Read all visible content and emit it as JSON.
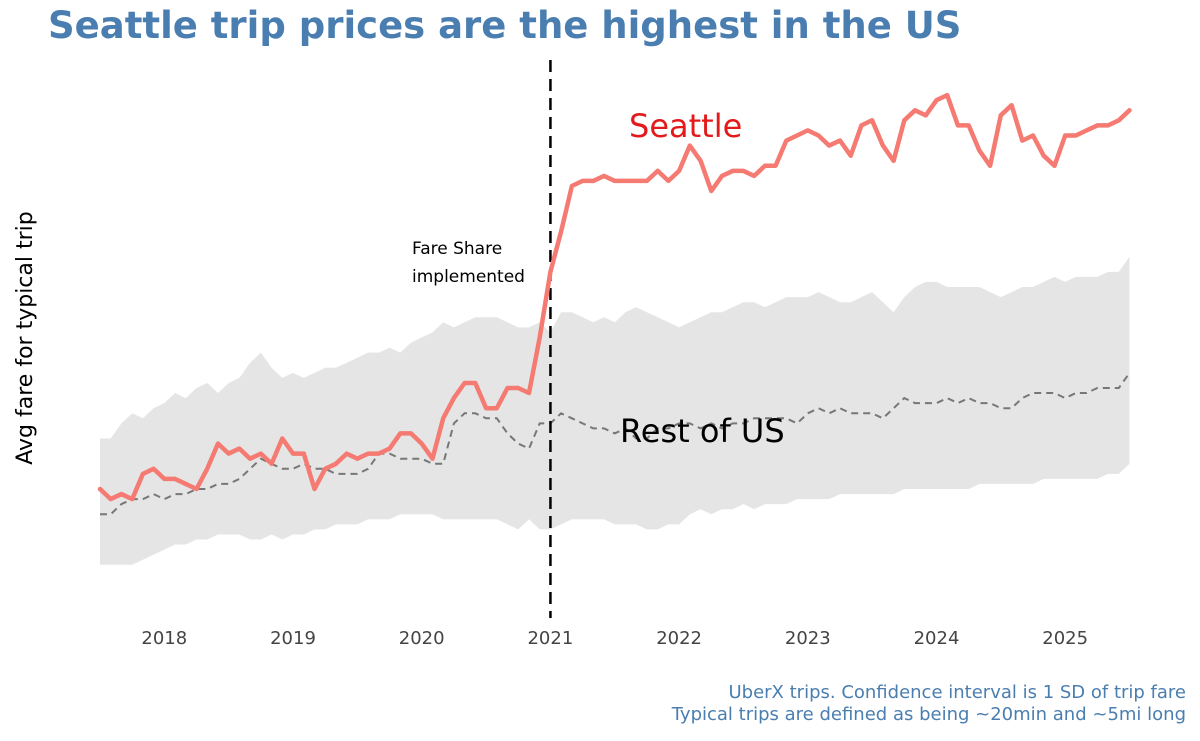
{
  "chart_data": {
    "type": "line",
    "title": "Seattle trip prices are the highest in the US",
    "ylabel": "Avg fare for typical trip",
    "xlabel": "",
    "x_start": 2017.5,
    "x_step": 0.08333,
    "xlim": [
      2017.5,
      2025.55
    ],
    "ylim": [
      0,
      100
    ],
    "x_ticks": [
      2018,
      2019,
      2020,
      2021,
      2022,
      2023,
      2024,
      2025
    ],
    "x_tick_labels": [
      "2018",
      "2019",
      "2020",
      "2021",
      "2022",
      "2023",
      "2024",
      "2025"
    ],
    "colors": {
      "seattle": "#f47a72",
      "seattle_label": "#e31a1c",
      "band": "#e5e5e5",
      "rest": "#777777",
      "title": "#4a7eb0"
    },
    "series": [
      {
        "name": "Seattle",
        "style": "solid",
        "values": [
          20,
          18,
          19,
          18,
          23,
          24,
          22,
          22,
          21,
          20,
          24,
          29,
          27,
          28,
          26,
          27,
          25,
          30,
          27,
          27,
          20,
          24,
          25,
          27,
          26,
          27,
          27,
          28,
          31,
          31,
          29,
          26,
          34,
          38,
          41,
          41,
          36,
          36,
          40,
          40,
          39,
          50,
          63,
          71,
          80,
          81,
          81,
          82,
          81,
          81,
          81,
          81,
          83,
          81,
          83,
          88,
          85,
          79,
          82,
          83,
          83,
          82,
          84,
          84,
          89,
          90,
          91,
          90,
          88,
          89,
          86,
          92,
          93,
          88,
          85,
          93,
          95,
          94,
          97,
          98,
          92,
          92,
          87,
          84,
          94,
          96,
          89,
          90,
          86,
          84,
          90,
          90,
          91,
          92,
          92,
          93,
          95
        ]
      },
      {
        "name": "Rest of US",
        "style": "dashed",
        "values": [
          15,
          15,
          17,
          18,
          18,
          19,
          18,
          19,
          19,
          20,
          20,
          21,
          21,
          22,
          24,
          26,
          25,
          24,
          24,
          25,
          24,
          24,
          23,
          23,
          23,
          24,
          27,
          27,
          26,
          26,
          26,
          25,
          25,
          33,
          35,
          35,
          34,
          34,
          31,
          29,
          28,
          33,
          33,
          35,
          34,
          33,
          32,
          32,
          31,
          32,
          30,
          30,
          32,
          32,
          33,
          33,
          32,
          33,
          32,
          33,
          33,
          34,
          34,
          34,
          34,
          33,
          35,
          36,
          35,
          36,
          35,
          35,
          35,
          34,
          36,
          38,
          37,
          37,
          37,
          38,
          37,
          38,
          37,
          37,
          36,
          36,
          38,
          39,
          39,
          39,
          38,
          39,
          39,
          40,
          40,
          40,
          43
        ]
      }
    ],
    "band": {
      "name": "Confidence interval (1 SD)",
      "upper": [
        30,
        30,
        33,
        35,
        34,
        36,
        37,
        39,
        38,
        40,
        41,
        39,
        41,
        42,
        45,
        47,
        44,
        42,
        43,
        42,
        43,
        44,
        44,
        45,
        46,
        47,
        47,
        48,
        47,
        49,
        50,
        51,
        53,
        52,
        53,
        54,
        54,
        54,
        53,
        52,
        52,
        53,
        51,
        55,
        55,
        54,
        53,
        54,
        53,
        55,
        56,
        55,
        54,
        53,
        52,
        53,
        54,
        55,
        55,
        56,
        57,
        57,
        56,
        57,
        58,
        58,
        58,
        59,
        58,
        57,
        57,
        58,
        59,
        57,
        55,
        58,
        60,
        61,
        61,
        60,
        60,
        60,
        60,
        59,
        58,
        59,
        60,
        60,
        61,
        62,
        61,
        62,
        62,
        62,
        63,
        63,
        66
      ],
      "lower": [
        5,
        5,
        5,
        5,
        6,
        7,
        8,
        9,
        9,
        10,
        10,
        11,
        11,
        11,
        10,
        10,
        11,
        10,
        11,
        11,
        12,
        12,
        13,
        13,
        13,
        14,
        14,
        14,
        15,
        15,
        15,
        15,
        14,
        14,
        14,
        14,
        14,
        14,
        13,
        12,
        14,
        12,
        12,
        13,
        14,
        14,
        14,
        14,
        13,
        13,
        13,
        12,
        12,
        13,
        13,
        15,
        16,
        15,
        16,
        16,
        17,
        16,
        17,
        17,
        17,
        18,
        18,
        18,
        18,
        19,
        19,
        19,
        19,
        19,
        19,
        20,
        20,
        20,
        20,
        20,
        20,
        20,
        21,
        21,
        21,
        21,
        21,
        21,
        22,
        22,
        22,
        22,
        22,
        22,
        23,
        23,
        25
      ]
    },
    "annotations": {
      "event_year": 2021,
      "event_line1": "Fare Share",
      "event_line2": "implemented",
      "seattle_label": "Seattle",
      "rest_label": "Rest of US"
    }
  },
  "caption": {
    "line1": "UberX trips. Confidence interval is 1 SD of trip fare",
    "line2": "Typical trips are defined as being ~20min and ~5mi long"
  }
}
